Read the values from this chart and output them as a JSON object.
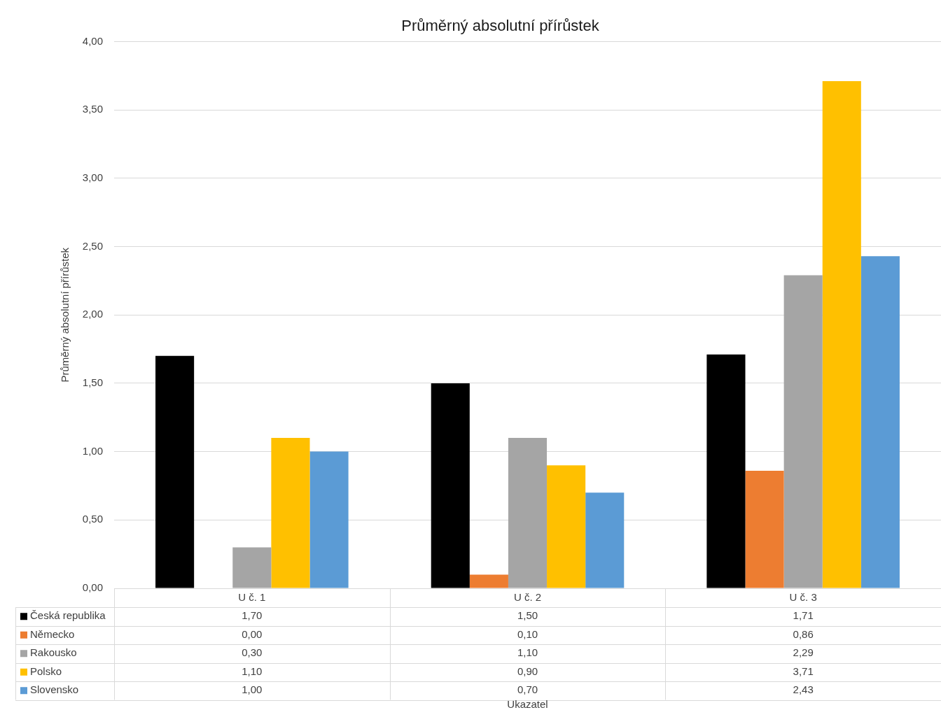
{
  "chart_data": {
    "type": "bar",
    "title": "Průměrný absolutní přírůstek",
    "annotations": [
      "Ukazatel"
    ],
    "ylabel": "Průměrný absolutní přírůstek",
    "categories": [
      "U č. 1",
      "U č. 2",
      "U č. 3"
    ],
    "series": [
      {
        "name": "Česká republika",
        "color": "#000000",
        "values": [
          1.7,
          1.5,
          1.71
        ],
        "value_labels": [
          "1,70",
          "1,50",
          "1,71"
        ]
      },
      {
        "name": "Německo",
        "color": "#ed7d31",
        "values": [
          0,
          0.1,
          0.86
        ],
        "value_labels": [
          "0,00",
          "0,10",
          "0,86"
        ]
      },
      {
        "name": "Rakousko",
        "color": "#a5a5a5",
        "values": [
          0.3,
          1.1,
          2.29
        ],
        "value_labels": [
          "0,30",
          "1,10",
          "2,29"
        ]
      },
      {
        "name": "Polsko",
        "color": "#ffc000",
        "values": [
          1.1,
          0.9,
          3.71
        ],
        "value_labels": [
          "1,10",
          "0,90",
          "3,71"
        ]
      },
      {
        "name": "Slovensko",
        "color": "#5b9bd5",
        "values": [
          1,
          0.7,
          2.43
        ],
        "value_labels": [
          "1,00",
          "0,70",
          "2,43"
        ]
      }
    ],
    "ylim": [
      0,
      4
    ],
    "yticks": [
      {
        "value": 0,
        "label": "0,00"
      },
      {
        "value": 0.5,
        "label": "0,50"
      },
      {
        "value": 1,
        "label": "1,00"
      },
      {
        "value": 1.5,
        "label": "1,50"
      },
      {
        "value": 2,
        "label": "2,00"
      },
      {
        "value": 2.5,
        "label": "2,50"
      },
      {
        "value": 3,
        "label": "3,00"
      },
      {
        "value": 3.5,
        "label": "3,50"
      },
      {
        "value": 4,
        "label": "4,00"
      }
    ],
    "grid": "y",
    "legend": "bottom"
  }
}
